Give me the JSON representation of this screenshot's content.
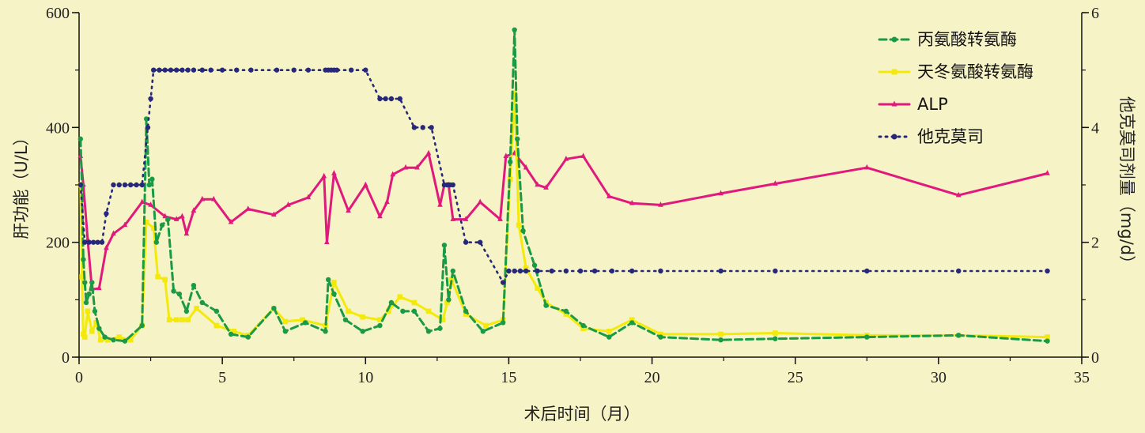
{
  "chart_data": {
    "type": "line",
    "xlabel": "术后时间（月）",
    "ylabel_left": "肝功能（U/L）",
    "ylabel_right": "他克莫司剂量（mg/d）",
    "xlim": [
      0,
      35
    ],
    "ylim_left": [
      0,
      600
    ],
    "ylim_right": [
      0,
      6
    ],
    "xticks": [
      0,
      5,
      10,
      15,
      20,
      25,
      30,
      35
    ],
    "yticks_left": [
      0,
      200,
      400,
      600
    ],
    "yticks_right": [
      0,
      2,
      4,
      6
    ],
    "grid": false,
    "legend_position": "top-right",
    "background_color": "#f6f3c6",
    "series": [
      {
        "name": "丙氨酸转氨酶",
        "axis": "left",
        "color": "#1a9a44",
        "style": "dashed",
        "marker": "circle",
        "x": [
          0.05,
          0.1,
          0.15,
          0.2,
          0.25,
          0.35,
          0.45,
          0.55,
          0.7,
          0.9,
          1.2,
          1.6,
          2.2,
          2.35,
          2.45,
          2.55,
          2.7,
          2.9,
          3.1,
          3.3,
          3.5,
          3.75,
          4.0,
          4.3,
          4.8,
          5.3,
          5.9,
          6.8,
          7.2,
          7.9,
          8.6,
          8.7,
          8.9,
          9.3,
          9.9,
          10.5,
          10.9,
          11.3,
          11.7,
          12.2,
          12.6,
          12.75,
          12.9,
          13.05,
          13.5,
          14.1,
          14.8,
          15.05,
          15.2,
          15.3,
          15.5,
          15.9,
          16.3,
          17.0,
          17.6,
          18.5,
          19.3,
          20.3,
          22.4,
          24.3,
          27.5,
          30.7,
          33.8
        ],
        "y": [
          380,
          300,
          170,
          130,
          95,
          110,
          130,
          80,
          50,
          35,
          30,
          28,
          55,
          415,
          300,
          310,
          200,
          230,
          240,
          115,
          110,
          80,
          125,
          95,
          80,
          40,
          35,
          85,
          45,
          60,
          45,
          135,
          110,
          65,
          45,
          55,
          95,
          80,
          80,
          45,
          50,
          195,
          100,
          150,
          80,
          45,
          60,
          340,
          570,
          380,
          220,
          160,
          90,
          80,
          55,
          35,
          60,
          35,
          30,
          32,
          35,
          38,
          28
        ]
      },
      {
        "name": "天冬氨酸转氨酶",
        "axis": "left",
        "color": "#f3e90a",
        "style": "solid",
        "marker": "square",
        "x": [
          0.05,
          0.1,
          0.15,
          0.2,
          0.3,
          0.45,
          0.6,
          0.75,
          1.0,
          1.4,
          1.8,
          2.2,
          2.35,
          2.6,
          2.75,
          3.0,
          3.15,
          3.4,
          3.6,
          3.8,
          4.1,
          4.8,
          5.4,
          5.9,
          6.8,
          7.2,
          7.8,
          8.6,
          8.9,
          9.4,
          9.9,
          10.5,
          10.8,
          11.2,
          11.7,
          12.2,
          12.7,
          12.85,
          13.0,
          13.5,
          14.2,
          14.8,
          15.05,
          15.2,
          15.35,
          15.6,
          16.0,
          16.3,
          17.0,
          17.6,
          18.5,
          19.3,
          20.3,
          22.4,
          24.3,
          27.5,
          30.7,
          33.8
        ],
        "y": [
          300,
          140,
          40,
          35,
          80,
          45,
          60,
          30,
          30,
          35,
          30,
          55,
          235,
          225,
          140,
          135,
          65,
          65,
          65,
          65,
          85,
          55,
          45,
          38,
          85,
          62,
          65,
          55,
          130,
          80,
          70,
          65,
          80,
          105,
          95,
          80,
          65,
          95,
          135,
          75,
          55,
          65,
          310,
          460,
          230,
          155,
          120,
          95,
          75,
          50,
          45,
          65,
          40,
          40,
          42,
          38,
          38,
          35
        ]
      },
      {
        "name": "ALP",
        "axis": "left",
        "color": "#e0197d",
        "style": "solid",
        "marker": "triangle",
        "x": [
          0.05,
          0.15,
          0.3,
          0.45,
          0.7,
          0.95,
          1.2,
          1.6,
          2.2,
          2.5,
          3.0,
          3.4,
          3.6,
          3.75,
          4.0,
          4.3,
          4.7,
          5.3,
          5.9,
          6.8,
          7.3,
          8.0,
          8.55,
          8.65,
          8.9,
          9.4,
          10.0,
          10.5,
          10.75,
          10.95,
          11.4,
          11.8,
          12.2,
          12.6,
          12.75,
          12.9,
          13.05,
          13.5,
          14.0,
          14.7,
          14.9,
          15.2,
          15.6,
          16.0,
          16.3,
          17.0,
          17.6,
          18.5,
          19.3,
          20.3,
          22.4,
          24.3,
          27.5,
          30.7,
          33.8
        ],
        "y": [
          350,
          300,
          205,
          118,
          120,
          190,
          215,
          230,
          270,
          265,
          245,
          240,
          245,
          215,
          255,
          275,
          275,
          235,
          258,
          248,
          265,
          278,
          315,
          200,
          320,
          255,
          300,
          245,
          270,
          318,
          330,
          330,
          355,
          265,
          300,
          300,
          240,
          240,
          270,
          240,
          350,
          355,
          330,
          300,
          295,
          345,
          350,
          280,
          268,
          265,
          285,
          302,
          330,
          282,
          320
        ]
      },
      {
        "name": "他克莫司",
        "axis": "right",
        "color": "#27287a",
        "style": "dotted",
        "marker": "circle",
        "x": [
          0.05,
          0.2,
          0.35,
          0.5,
          0.65,
          0.8,
          0.95,
          1.2,
          1.4,
          1.6,
          1.8,
          2.0,
          2.2,
          2.4,
          2.5,
          2.6,
          2.8,
          3.0,
          3.2,
          3.4,
          3.6,
          3.8,
          4.0,
          4.3,
          4.6,
          5.0,
          5.5,
          6.0,
          6.9,
          7.5,
          8.0,
          8.6,
          8.7,
          8.8,
          8.9,
          9.0,
          9.5,
          10.0,
          10.5,
          10.7,
          10.9,
          11.2,
          11.7,
          12.0,
          12.3,
          12.75,
          12.85,
          12.95,
          13.05,
          13.5,
          14.0,
          14.8,
          15.0,
          15.2,
          15.4,
          15.6,
          16.0,
          16.5,
          17.0,
          17.5,
          18.0,
          18.6,
          19.3,
          20.3,
          22.4,
          24.3,
          27.5,
          30.7,
          33.8
        ],
        "y": [
          3.0,
          2.0,
          2.0,
          2.0,
          2.0,
          2.0,
          2.5,
          3.0,
          3.0,
          3.0,
          3.0,
          3.0,
          3.0,
          4.0,
          4.5,
          5.0,
          5.0,
          5.0,
          5.0,
          5.0,
          5.0,
          5.0,
          5.0,
          5.0,
          5.0,
          5.0,
          5.0,
          5.0,
          5.0,
          5.0,
          5.0,
          5.0,
          5.0,
          5.0,
          5.0,
          5.0,
          5.0,
          5.0,
          4.5,
          4.5,
          4.5,
          4.5,
          4.0,
          4.0,
          4.0,
          3.0,
          3.0,
          3.0,
          3.0,
          2.0,
          2.0,
          1.3,
          1.5,
          1.5,
          1.5,
          1.5,
          1.5,
          1.5,
          1.5,
          1.5,
          1.5,
          1.5,
          1.5,
          1.5,
          1.5,
          1.5,
          1.5,
          1.5,
          1.5
        ]
      }
    ]
  }
}
